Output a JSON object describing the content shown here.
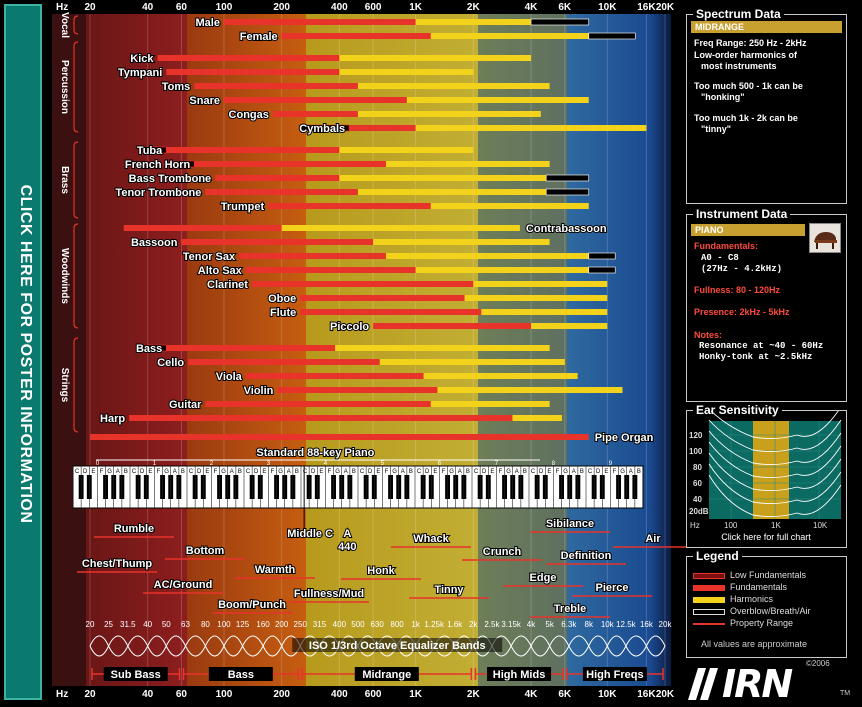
{
  "banner": {
    "text": "CLICK HERE FOR POSTER INFORMATION"
  },
  "top_axis": {
    "hz": "Hz",
    "ticks": [
      "20",
      "40",
      "60",
      "100",
      "200",
      "400",
      "600",
      "1K",
      "2K",
      "4K",
      "6K",
      "10K",
      "16K",
      "20K"
    ]
  },
  "bottom_axis": {
    "hz": "Hz",
    "ticks": [
      "20",
      "40",
      "60",
      "100",
      "200",
      "400",
      "600",
      "1K",
      "2K",
      "4K",
      "6K",
      "10K",
      "16K",
      "20K"
    ]
  },
  "groups": [
    "Vocal",
    "Percussion",
    "Brass",
    "Woodwinds",
    "Strings"
  ],
  "instruments": [
    {
      "name": "Male",
      "label_side": "left"
    },
    {
      "name": "Female",
      "label_side": "left"
    },
    {
      "name": "Kick",
      "label_side": "left"
    },
    {
      "name": "Tympani",
      "label_side": "left"
    },
    {
      "name": "Toms",
      "label_side": "left"
    },
    {
      "name": "Snare",
      "label_side": "left"
    },
    {
      "name": "Congas",
      "label_side": "left"
    },
    {
      "name": "Cymbals",
      "label_side": "left"
    },
    {
      "name": "Tuba",
      "label_side": "left"
    },
    {
      "name": "French Horn",
      "label_side": "left"
    },
    {
      "name": "Bass Trombone",
      "label_side": "left"
    },
    {
      "name": "Tenor Trombone",
      "label_side": "left"
    },
    {
      "name": "Trumpet",
      "label_side": "left"
    },
    {
      "name": "Contrabassoon",
      "label_side": "right"
    },
    {
      "name": "Bassoon",
      "label_side": "left"
    },
    {
      "name": "Tenor Sax",
      "label_side": "left"
    },
    {
      "name": "Alto Sax",
      "label_side": "left"
    },
    {
      "name": "Clarinet",
      "label_side": "left"
    },
    {
      "name": "Oboe",
      "label_side": "left"
    },
    {
      "name": "Flute",
      "label_side": "left"
    },
    {
      "name": "Piccolo",
      "label_side": "left"
    },
    {
      "name": "Bass",
      "label_side": "left"
    },
    {
      "name": "Cello",
      "label_side": "left"
    },
    {
      "name": "Viola",
      "label_side": "left"
    },
    {
      "name": "Violin",
      "label_side": "left"
    },
    {
      "name": "Guitar",
      "label_side": "left"
    },
    {
      "name": "Harp",
      "label_side": "left"
    },
    {
      "name": "Pipe Organ",
      "label_side": "right"
    }
  ],
  "piano": {
    "title": "Standard 88-key Piano",
    "octaves": [
      "0",
      "1",
      "2",
      "3",
      "4",
      "5",
      "6",
      "7",
      "8",
      "9"
    ],
    "notes": "CDEFGAB"
  },
  "markers": {
    "middle_c": "Middle C",
    "a440_top": "A",
    "a440_bottom": "440"
  },
  "descriptors": [
    "Rumble",
    "Bottom",
    "Chest/Thump",
    "AC/Ground",
    "Warmth",
    "Boom/Punch",
    "Fullness/Mud",
    "Honk",
    "Whack",
    "Tinny",
    "Crunch",
    "Sibilance",
    "Edge",
    "Definition",
    "Pierce",
    "Air",
    "Treble"
  ],
  "eq": {
    "title": "ISO 1/3rd Octave Equalizer Bands",
    "bands": [
      "20",
      "25",
      "31.5",
      "40",
      "50",
      "63",
      "80",
      "100",
      "125",
      "160",
      "200",
      "250",
      "315",
      "400",
      "500",
      "630",
      "800",
      "1k",
      "1.25k",
      "1.6k",
      "2k",
      "2.5k",
      "3.15k",
      "4k",
      "5k",
      "6.3k",
      "8k",
      "10k",
      "12.5k",
      "16k",
      "20k"
    ]
  },
  "regions": [
    "Sub Bass",
    "Bass",
    "Midrange",
    "High Mids",
    "High Freqs"
  ],
  "spectrum_panel": {
    "title": "Spectrum Data",
    "band": "MIDRANGE",
    "freq_range": "Freq Range: 250 Hz - 2kHz",
    "line1": "Low-order harmonics of",
    "line2": "most instruments",
    "line3": "Too much 500 - 1k can be",
    "line4": "\"honking\"",
    "line5": "Too much 1k - 2k can be",
    "line6": "\"tinny\""
  },
  "instrument_panel": {
    "title": "Instrument Data",
    "name": "PIANO",
    "fund_label": "Fundamentals:",
    "fund_range": "A0 - C8",
    "fund_hz": "(27Hz - 4.2kHz)",
    "fullness": "Fullness: 80 - 120Hz",
    "presence": "Presence: 2kHz - 5kHz",
    "notes_label": "Notes:",
    "note1": "Resonance at ~40 - 60Hz",
    "note2": "Honky-tonk at ~2.5kHz"
  },
  "ear_panel": {
    "title": "Ear Sensitivity",
    "y_ticks": [
      "120",
      "100",
      "80",
      "60",
      "40",
      "20dB"
    ],
    "x_ticks": [
      "Hz",
      "100",
      "1K",
      "10K"
    ],
    "link": "Click here for full chart"
  },
  "legend_panel": {
    "title": "Legend",
    "items": [
      {
        "label": "Low Fundamentals",
        "color": "#7a1010"
      },
      {
        "label": "Fundamentals",
        "color": "#e8332a"
      },
      {
        "label": "Harmonics",
        "color": "#f2d21a"
      },
      {
        "label": "Overblow/Breath/Air",
        "color": "#000000"
      },
      {
        "label": "Property Range",
        "color": "#e8332a"
      }
    ],
    "note": "All values are approximate"
  },
  "logo": {
    "text": "IRN",
    "year": "©2006",
    "tm": "TM"
  },
  "colors": {
    "sub_bass": "#8a1a1a",
    "bass": "#b4450c",
    "midrange": "#b8a21e",
    "high_mids": "#6b7a5a",
    "high_freqs": "#1d5fa8",
    "fund": "#e8332a",
    "harm": "#f2d21a",
    "lowfund": "#7a1010"
  }
}
